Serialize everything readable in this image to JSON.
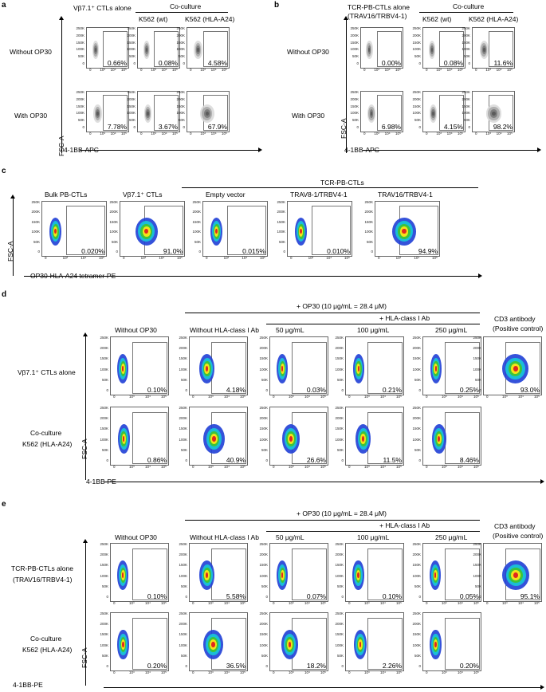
{
  "panel_a": {
    "letter": "a",
    "header_alone": "Vβ7.1⁺ CTLs alone",
    "header_coculture": "Co-culture",
    "col_k562_wt": "K562 (wt)",
    "col_k562_a24": "K562 (HLA-A24)",
    "row_without": "Without OP30",
    "row_with": "With OP30",
    "y_axis": "FSC-A",
    "x_axis": "4-1BB-APC",
    "pct_without": [
      "0.66%",
      "0.08%",
      "4.58%"
    ],
    "pct_with": [
      "7.78%",
      "3.67%",
      "67.9%"
    ]
  },
  "panel_b": {
    "letter": "b",
    "header_alone_1": "TCR-PB-CTLs alone",
    "header_alone_2": "(TRAV16/TRBV4-1)",
    "header_coculture": "Co-culture",
    "col_k562_wt": "K562 (wt)",
    "col_k562_a24": "K562 (HLA-A24)",
    "row_without": "Without OP30",
    "row_with": "With OP30",
    "y_axis": "FSC-A",
    "x_axis": "4-1BB-APC",
    "pct_without": [
      "0.00%",
      "0.08%",
      "11.6%"
    ],
    "pct_with": [
      "6.98%",
      "4.15%",
      "98.2%"
    ]
  },
  "panel_c": {
    "letter": "c",
    "group_header": "TCR-PB-CTLs",
    "cols": [
      "Bulk PB-CTLs",
      "Vβ7.1⁺ CTLs",
      "Empty vector",
      "TRAV8-1/TRBV4-1",
      "TRAV16/TRBV4-1"
    ],
    "pct": [
      "0.020%",
      "91.0%",
      "0.015%",
      "0.010%",
      "94.9%"
    ],
    "y_axis": "FSC-A",
    "x_axis": "OP30-HLA-A24 tetramer-PE"
  },
  "panel_d": {
    "letter": "d",
    "header_op30": "+ OP30 (10 μg/mL = 28.4 μM)",
    "header_hla": "+ HLA-class I Ab",
    "cols": [
      "Without OP30",
      "Without HLA-class I Ab",
      "50 μg/mL",
      "100 μg/mL",
      "250 μg/mL"
    ],
    "col_cd3_1": "CD3 antibody",
    "col_cd3_2": "(Positive control)",
    "row1": "Vβ7.1⁺ CTLs alone",
    "row2_1": "Co-culture",
    "row2_2": "K562 (HLA-A24)",
    "pct_row1": [
      "0.10%",
      "4.18%",
      "0.03%",
      "0.21%",
      "0.25%",
      "93.0%"
    ],
    "pct_row2": [
      "0.86%",
      "40.9%",
      "26.6%",
      "11.5%",
      "8.46%"
    ],
    "y_axis": "FSC-A",
    "x_axis": "4-1BB-PE"
  },
  "panel_e": {
    "letter": "e",
    "header_op30": "+ OP30 (10 μg/mL = 28.4 μM)",
    "header_hla": "+ HLA-class I Ab",
    "cols": [
      "Without OP30",
      "Without HLA-class I Ab",
      "50 μg/mL",
      "100 μg/mL",
      "250 μg/mL"
    ],
    "col_cd3_1": "CD3 antibody",
    "col_cd3_2": "(Positive control)",
    "row1_1": "TCR-PB-CTLs alone",
    "row1_2": "(TRAV16/TRBV4-1)",
    "row2_1": "Co-culture",
    "row2_2": "K562 (HLA-A24)",
    "pct_row1": [
      "0.10%",
      "5.58%",
      "0.07%",
      "0.10%",
      "0.05%",
      "95.1%"
    ],
    "pct_row2": [
      "0.20%",
      "36.5%",
      "18.2%",
      "2.26%",
      "0.20%"
    ],
    "y_axis": "FSC-A",
    "x_axis": "4-1BB-PE"
  },
  "ticks": {
    "y": [
      "250K",
      "200K",
      "150K",
      "100K",
      "50K",
      "0"
    ],
    "x": [
      "0",
      "10³",
      "10⁴",
      "10⁵"
    ]
  },
  "colors": {
    "gray_density": "#6a6a6a",
    "heat_blue": "#1f3fd6",
    "heat_cyan": "#19c3d8",
    "heat_green": "#3cc43c",
    "heat_yellow": "#f2e31a",
    "heat_red": "#e0281e"
  }
}
